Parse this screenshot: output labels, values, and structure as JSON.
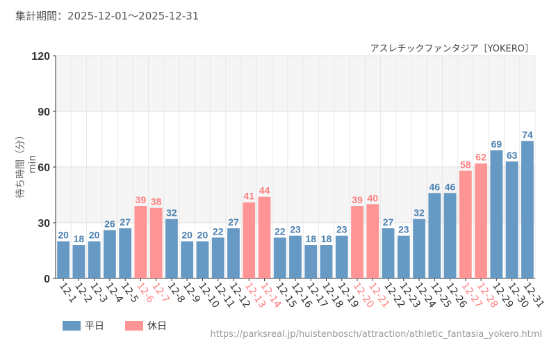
{
  "header": {
    "period": "集計期間：2025-12-01～2025-12-31"
  },
  "chart_data": {
    "type": "bar",
    "title": "アスレチックファンタジア［YOKERO］",
    "ylabel": "待ち時間（分）min",
    "xlabel": "",
    "ylim": [
      0,
      120
    ],
    "yticks": [
      "0",
      "30",
      "60",
      "90",
      "120"
    ],
    "categories": [
      "12-1",
      "12-2",
      "12-3",
      "12-4",
      "12-5",
      "12-6",
      "12-7",
      "12-8",
      "12-9",
      "12-10",
      "12-11",
      "12-12",
      "12-13",
      "12-14",
      "12-15",
      "12-16",
      "12-17",
      "12-18",
      "12-19",
      "12-20",
      "12-21",
      "12-22",
      "12-23",
      "12-24",
      "12-25",
      "12-26",
      "12-27",
      "12-28",
      "12-29",
      "12-30",
      "12-31"
    ],
    "values": [
      20,
      18,
      20,
      26,
      27,
      39,
      38,
      32,
      20,
      20,
      22,
      27,
      41,
      44,
      22,
      23,
      18,
      18,
      23,
      39,
      40,
      27,
      23,
      32,
      46,
      46,
      58,
      62,
      69,
      63,
      74
    ],
    "holiday": [
      0,
      0,
      0,
      0,
      0,
      1,
      1,
      0,
      0,
      0,
      0,
      0,
      1,
      1,
      0,
      0,
      0,
      0,
      0,
      1,
      1,
      0,
      0,
      0,
      0,
      0,
      1,
      1,
      0,
      0,
      0
    ],
    "legend": [
      {
        "label": "平日",
        "color": "#6699c4"
      },
      {
        "label": "休日",
        "color": "#ff9494"
      }
    ],
    "legend_position": "bottom-left",
    "grid": true
  },
  "colors": {
    "weekday": "#6699c4",
    "holiday": "#ff9494",
    "weekday_text": "#4a7fb0",
    "holiday_text": "#ff7f7f"
  },
  "footer": {
    "url": "https://parksreal.jp/huistenbosch/attraction/athletic_fantasia_yokero.html"
  }
}
